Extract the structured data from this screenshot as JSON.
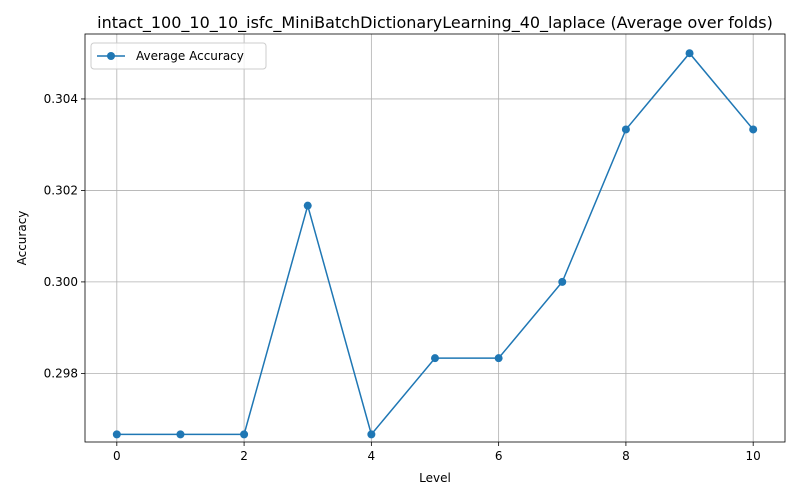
{
  "chart_data": {
    "type": "line",
    "title": "intact_100_10_10_isfc_MiniBatchDictionaryLearning_40_laplace (Average over folds)",
    "xlabel": "Level",
    "ylabel": "Accuracy",
    "x": [
      0,
      1,
      2,
      3,
      4,
      5,
      6,
      7,
      8,
      9,
      10
    ],
    "series": [
      {
        "name": "Average Accuracy",
        "values": [
          0.296667,
          0.296667,
          0.296667,
          0.301667,
          0.296667,
          0.298333,
          0.298333,
          0.3,
          0.303333,
          0.305,
          0.303333
        ]
      }
    ],
    "xlim": [
      -0.5,
      10.5
    ],
    "ylim": [
      0.2965,
      0.30542
    ],
    "xticks": [
      0,
      2,
      4,
      6,
      8,
      10
    ],
    "yticks": [
      0.298,
      0.3,
      0.302,
      0.304
    ],
    "ytick_labels": [
      "0.298",
      "0.300",
      "0.302",
      "0.304"
    ],
    "grid": true,
    "legend_position": "upper-left",
    "line_color": "#1f77b4"
  }
}
